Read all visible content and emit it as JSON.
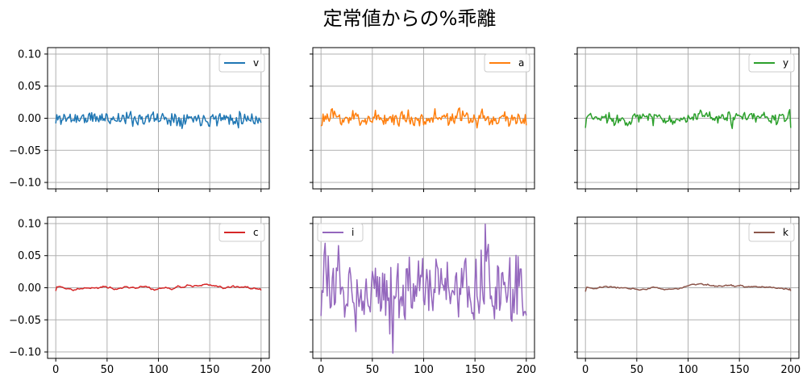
{
  "title": "定常値からの%乖離",
  "chart_data": {
    "type": "line",
    "title": "定常値からの%乖離",
    "layout": "2x3 subplots, shared axes",
    "grid": true,
    "xlim": [
      -8,
      208
    ],
    "ylim": [
      -0.11,
      0.11
    ],
    "x_ticks": [
      0,
      50,
      100,
      150,
      200
    ],
    "x_tick_labels": [
      "0",
      "50",
      "100",
      "150",
      "200"
    ],
    "y_ticks": [
      -0.1,
      -0.05,
      0.0,
      0.05,
      0.1
    ],
    "y_tick_labels": [
      "−0.10",
      "−0.05",
      "0.00",
      "0.05",
      "0.10"
    ],
    "x": "0..200 step 1",
    "series": [
      {
        "name": "v",
        "color": "#1f77b4",
        "legend_loc": "upper right",
        "start": -0.008,
        "end": -0.007,
        "amplitude": 0.01,
        "ar": 0.1,
        "seed": 11
      },
      {
        "name": "a",
        "color": "#ff7f0e",
        "legend_loc": "upper right",
        "start": -0.012,
        "end": -0.011,
        "amplitude": 0.01,
        "ar": 0.3,
        "seed": 23
      },
      {
        "name": "y",
        "color": "#2ca02c",
        "legend_loc": "upper right",
        "start": -0.015,
        "end": -0.015,
        "amplitude": 0.01,
        "ar": 0.4,
        "seed": 37
      },
      {
        "name": "c",
        "color": "#d62728",
        "legend_loc": "upper right",
        "start": -0.005,
        "end": -0.004,
        "amplitude": 0.0035,
        "ar": 0.95,
        "seed": 41
      },
      {
        "name": "i",
        "color": "#9467bd",
        "legend_loc": "upper left",
        "start": -0.044,
        "end": -0.043,
        "amplitude": 0.045,
        "ar": 0.3,
        "seed": 53
      },
      {
        "name": "k",
        "color": "#8c564b",
        "legend_loc": "upper right",
        "start": -0.006,
        "end": -0.005,
        "amplitude": 0.004,
        "ar": 0.97,
        "seed": 67
      }
    ],
    "annotations": {
      "i_peak": {
        "x": 160,
        "y": 0.099
      },
      "i_trough": {
        "x": 70,
        "y": -0.102
      }
    }
  }
}
